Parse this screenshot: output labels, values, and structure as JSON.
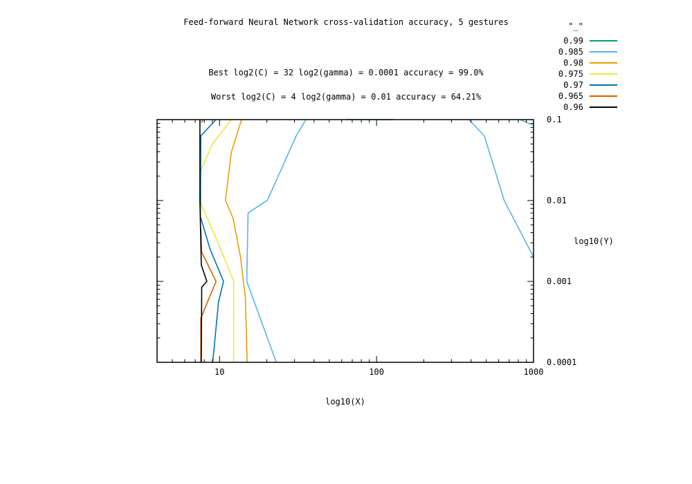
{
  "chart_data": {
    "type": "line",
    "title": "Feed-forward Neural Network cross-validation accuracy, 5 gestures",
    "annotations": [
      "Best log2(C) = 32  log2(gamma) = 0.0001  accuracy = 99.0%",
      "Worst log2(C) = 4  log2(gamma) = 0.01   accuracy = 64.21%"
    ],
    "xlabel": "log10(X)",
    "ylabel": "log10(Y)",
    "x_scale": "log",
    "y_scale": "log",
    "xlim": [
      4.0,
      1000
    ],
    "ylim": [
      0.0001,
      0.1
    ],
    "x_ticks": [
      {
        "value": 10,
        "label": "10"
      },
      {
        "value": 100,
        "label": "100"
      },
      {
        "value": 1000,
        "label": "1000"
      }
    ],
    "y_ticks": [
      {
        "value": 0.1,
        "label": "0.1"
      },
      {
        "value": 0.01,
        "label": "0.01"
      },
      {
        "value": 0.001,
        "label": "0.001"
      },
      {
        "value": 0.0001,
        "label": "0.0001"
      }
    ],
    "grid": false,
    "legend_position": "top-right",
    "legend_title": "\"_\"",
    "series": [
      {
        "name": "0.99",
        "color": "#009e73",
        "lines": [
          [
            [
              64,
              0.1
            ],
            [
              128,
              0.1
            ]
          ]
        ]
      },
      {
        "name": "0.985",
        "color": "#56b4e9",
        "lines": [
          [
            [
              23,
              0.0001
            ],
            [
              14.9,
              0.001
            ],
            [
              15.2,
              0.007
            ],
            [
              20.2,
              0.0101
            ],
            [
              30.8,
              0.0631
            ],
            [
              35.5,
              0.1
            ]
          ],
          [
            [
              388,
              0.1
            ],
            [
              486,
              0.063
            ],
            [
              650,
              0.01
            ],
            [
              1000,
              0.002
            ]
          ],
          [
            [
              820,
              0.1
            ],
            [
              1000,
              0.085
            ]
          ]
        ]
      },
      {
        "name": "0.98",
        "color": "#e69f00",
        "lines": [
          [
            [
              15.0,
              0.0001
            ],
            [
              14.6,
              0.00063
            ],
            [
              13.6,
              0.002
            ],
            [
              12.2,
              0.006
            ],
            [
              10.9,
              0.0101
            ],
            [
              11.9,
              0.0398
            ],
            [
              13.8,
              0.1
            ]
          ]
        ]
      },
      {
        "name": "0.975",
        "color": "#f0e442",
        "lines": [
          [
            [
              12.3,
              0.0001
            ],
            [
              12.3,
              0.001
            ],
            [
              9.65,
              0.0032
            ],
            [
              7.6,
              0.0091
            ],
            [
              7.55,
              0.0229
            ],
            [
              9.0,
              0.0501
            ],
            [
              11.9,
              0.1
            ]
          ]
        ]
      },
      {
        "name": "0.97",
        "color": "#0072b2",
        "lines": [
          [
            [
              9.05,
              0.0001
            ],
            [
              9.85,
              0.00056
            ],
            [
              10.6,
              0.001
            ],
            [
              8.7,
              0.0025
            ],
            [
              7.55,
              0.0063
            ],
            [
              7.6,
              0.063
            ],
            [
              9.5,
              0.1
            ]
          ]
        ]
      },
      {
        "name": "0.965",
        "color": "#d55e00",
        "lines": [
          [
            [
              7.6,
              0.0001
            ],
            [
              7.6,
              0.00035
            ],
            [
              8.6,
              0.00063
            ],
            [
              9.5,
              0.001
            ],
            [
              7.7,
              0.0023
            ],
            [
              7.6,
              0.0045
            ]
          ],
          [
            [
              7.9,
              0.1
            ],
            [
              7.65,
              0.092
            ]
          ]
        ]
      },
      {
        "name": "0.96",
        "color": "#000000",
        "lines": [
          [
            [
              7.65,
              0.0001
            ],
            [
              7.7,
              0.00085
            ],
            [
              8.3,
              0.001
            ],
            [
              7.65,
              0.0016
            ],
            [
              7.5,
              0.01
            ],
            [
              7.5,
              0.1
            ]
          ]
        ]
      }
    ]
  }
}
